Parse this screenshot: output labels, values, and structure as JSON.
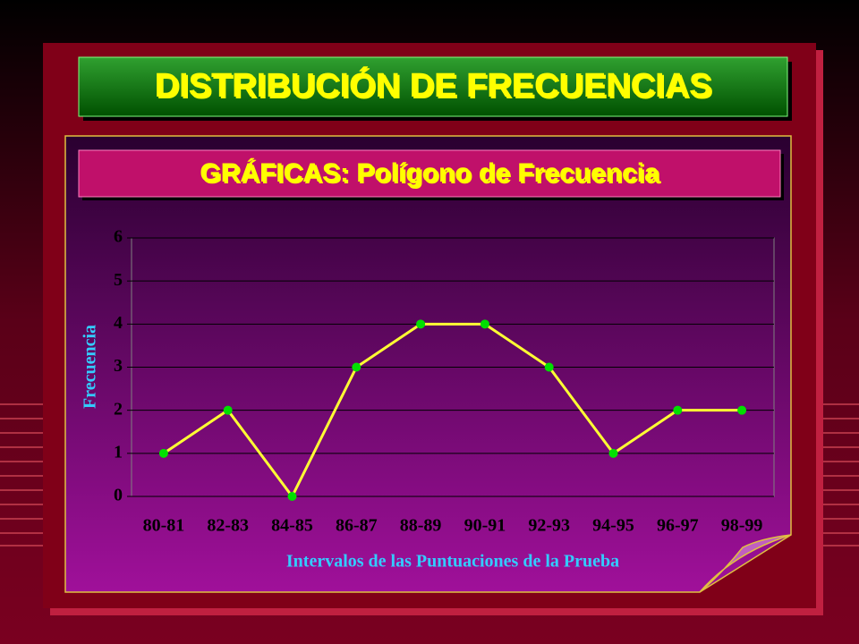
{
  "chart_data": {
    "type": "line",
    "title": "DISTRIBUCIÓN DE FRECUENCIAS",
    "subtitle": "GRÁFICAS: Polígono de Frecuencia",
    "x_label": "Intervalos de las Puntuaciones de la Prueba",
    "y_label": "Frecuencia",
    "categories": [
      "80-81",
      "82-83",
      "84-85",
      "86-87",
      "88-89",
      "90-91",
      "92-93",
      "94-95",
      "96-97",
      "98-99"
    ],
    "values": [
      1,
      2,
      0,
      3,
      4,
      4,
      3,
      1,
      2,
      2
    ],
    "line_color": "#ffff33",
    "marker_color": "#00e000",
    "ylim": [
      0,
      6
    ],
    "yticks": [
      0,
      1,
      2,
      3,
      4,
      5,
      6
    ],
    "grid": true
  }
}
